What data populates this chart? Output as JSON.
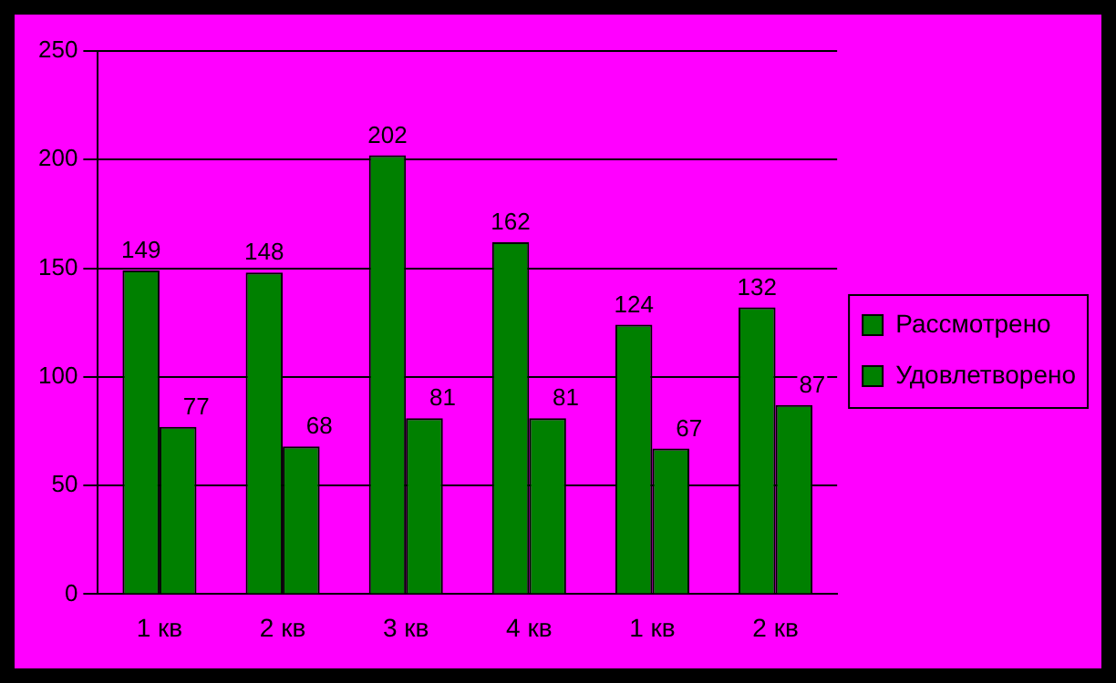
{
  "chart_data": {
    "type": "bar",
    "categories": [
      "1 кв",
      "2 кв",
      "3 кв",
      "4 кв",
      "1 кв",
      "2 кв"
    ],
    "series": [
      {
        "name": "Рассмотрено",
        "color": "#008000",
        "values": [
          149,
          148,
          202,
          162,
          124,
          132
        ]
      },
      {
        "name": "Удовлетворено",
        "color": "#008000",
        "values": [
          77,
          68,
          81,
          81,
          67,
          87
        ]
      }
    ],
    "ylim": [
      0,
      250
    ],
    "yticks": [
      0,
      50,
      100,
      150,
      200,
      250
    ],
    "grid": "y",
    "legend": "right",
    "data_labels": true
  }
}
